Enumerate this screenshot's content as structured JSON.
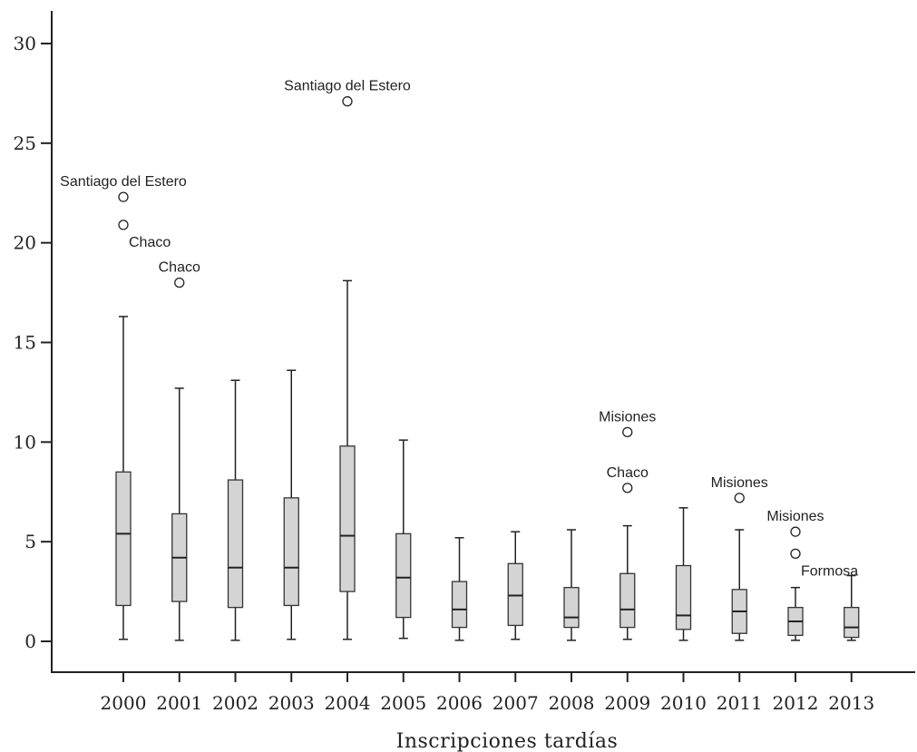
{
  "chart_data": {
    "type": "box",
    "xlabel": "Inscripciones tardías",
    "ylabel": "",
    "ylim": [
      -1.5,
      31.5
    ],
    "yticks": [
      0,
      5,
      10,
      15,
      20,
      25,
      30
    ],
    "categories": [
      "2000",
      "2001",
      "2002",
      "2003",
      "2004",
      "2005",
      "2006",
      "2007",
      "2008",
      "2009",
      "2010",
      "2011",
      "2012",
      "2013"
    ],
    "boxes": [
      {
        "year": "2000",
        "min": 0.1,
        "q1": 1.8,
        "median": 5.4,
        "q3": 8.5,
        "max": 16.3
      },
      {
        "year": "2001",
        "min": 0.05,
        "q1": 2.0,
        "median": 4.2,
        "q3": 6.4,
        "max": 12.7
      },
      {
        "year": "2002",
        "min": 0.05,
        "q1": 1.7,
        "median": 3.7,
        "q3": 8.1,
        "max": 13.1
      },
      {
        "year": "2003",
        "min": 0.1,
        "q1": 1.8,
        "median": 3.7,
        "q3": 7.2,
        "max": 13.6
      },
      {
        "year": "2004",
        "min": 0.1,
        "q1": 2.5,
        "median": 5.3,
        "q3": 9.8,
        "max": 18.1
      },
      {
        "year": "2005",
        "min": 0.15,
        "q1": 1.2,
        "median": 3.2,
        "q3": 5.4,
        "max": 10.1
      },
      {
        "year": "2006",
        "min": 0.05,
        "q1": 0.7,
        "median": 1.6,
        "q3": 3.0,
        "max": 5.2
      },
      {
        "year": "2007",
        "min": 0.1,
        "q1": 0.8,
        "median": 2.3,
        "q3": 3.9,
        "max": 5.5
      },
      {
        "year": "2008",
        "min": 0.05,
        "q1": 0.7,
        "median": 1.2,
        "q3": 2.7,
        "max": 5.6
      },
      {
        "year": "2009",
        "min": 0.1,
        "q1": 0.7,
        "median": 1.6,
        "q3": 3.4,
        "max": 5.8
      },
      {
        "year": "2010",
        "min": 0.05,
        "q1": 0.6,
        "median": 1.3,
        "q3": 3.8,
        "max": 6.7
      },
      {
        "year": "2011",
        "min": 0.05,
        "q1": 0.4,
        "median": 1.5,
        "q3": 2.6,
        "max": 5.6
      },
      {
        "year": "2012",
        "min": 0.05,
        "q1": 0.3,
        "median": 1.0,
        "q3": 1.7,
        "max": 2.7
      },
      {
        "year": "2013",
        "min": 0.05,
        "q1": 0.2,
        "median": 0.7,
        "q3": 1.7,
        "max": 3.3
      }
    ],
    "outliers": [
      {
        "year": "2000",
        "value": 22.3,
        "label": "Santiago del Estero",
        "label_side": "above"
      },
      {
        "year": "2000",
        "value": 20.9,
        "label": "Chaco",
        "label_side": "below-right"
      },
      {
        "year": "2001",
        "value": 18.0,
        "label": "Chaco",
        "label_side": "above"
      },
      {
        "year": "2004",
        "value": 27.1,
        "label": "Santiago del Estero",
        "label_side": "above"
      },
      {
        "year": "2009",
        "value": 10.5,
        "label": "Misiones",
        "label_side": "above"
      },
      {
        "year": "2009",
        "value": 7.7,
        "label": "Chaco",
        "label_side": "above"
      },
      {
        "year": "2011",
        "value": 7.2,
        "label": "Misiones",
        "label_side": "above"
      },
      {
        "year": "2012",
        "value": 5.5,
        "label": "Misiones",
        "label_side": "above"
      },
      {
        "year": "2012",
        "value": 4.4,
        "label": "Formosa",
        "label_side": "below-right"
      }
    ],
    "grid": false,
    "legend": "none"
  }
}
